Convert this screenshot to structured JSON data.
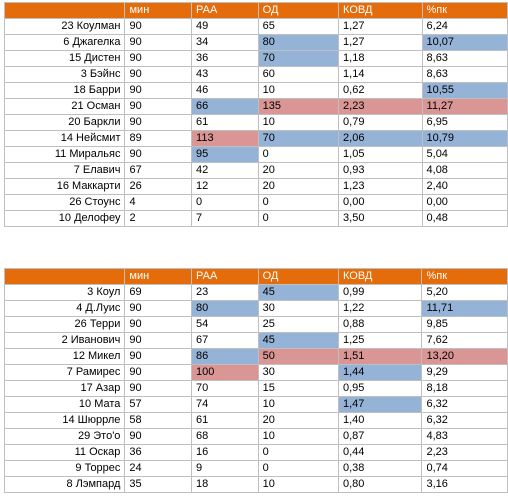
{
  "headers": [
    "",
    "мин",
    "РАА",
    "ОД",
    "КОВД",
    "%пк"
  ],
  "table_top": {
    "rows": [
      {
        "cells": [
          "23 Коулман",
          "90",
          "49",
          "65",
          "1,27",
          "6,24"
        ],
        "hl": [
          "",
          "",
          "",
          "",
          "",
          ""
        ]
      },
      {
        "cells": [
          "6 Джагелка",
          "90",
          "34",
          "80",
          "1,27",
          "10,07"
        ],
        "hl": [
          "",
          "",
          "",
          "blue",
          "",
          "blue"
        ]
      },
      {
        "cells": [
          "15 Дистен",
          "90",
          "36",
          "70",
          "1,18",
          "8,63"
        ],
        "hl": [
          "",
          "",
          "",
          "blue",
          "",
          ""
        ]
      },
      {
        "cells": [
          "3 Бэйнс",
          "90",
          "43",
          "60",
          "1,14",
          "8,63"
        ],
        "hl": [
          "",
          "",
          "",
          "",
          "",
          ""
        ]
      },
      {
        "cells": [
          "18 Барри",
          "90",
          "46",
          "10",
          "0,62",
          "10,55"
        ],
        "hl": [
          "",
          "",
          "",
          "",
          "",
          "blue"
        ]
      },
      {
        "cells": [
          "21 Осман",
          "90",
          "66",
          "135",
          "2,23",
          "11,27"
        ],
        "hl": [
          "",
          "",
          "blue",
          "red",
          "red",
          "red"
        ]
      },
      {
        "cells": [
          "20 Баркли",
          "90",
          "61",
          "10",
          "0,79",
          "6,95"
        ],
        "hl": [
          "",
          "",
          "",
          "",
          "",
          ""
        ]
      },
      {
        "cells": [
          "14 Нейсмит",
          "89",
          "113",
          "70",
          "2,06",
          "10,79"
        ],
        "hl": [
          "",
          "",
          "red",
          "blue",
          "blue",
          "blue"
        ]
      },
      {
        "cells": [
          "11 Миральяс",
          "90",
          "95",
          "0",
          "1,05",
          "5,04"
        ],
        "hl": [
          "",
          "",
          "blue",
          "",
          "",
          ""
        ]
      },
      {
        "cells": [
          "7 Елавич",
          "67",
          "42",
          "20",
          "0,93",
          "4,08"
        ],
        "hl": [
          "",
          "",
          "",
          "",
          "",
          ""
        ]
      },
      {
        "cells": [
          "16 Маккарти",
          "26",
          "12",
          "20",
          "1,23",
          "2,40"
        ],
        "hl": [
          "",
          "",
          "",
          "",
          "",
          ""
        ]
      },
      {
        "cells": [
          "26 Стоунс",
          "4",
          "0",
          "0",
          "0,00",
          "0,00"
        ],
        "hl": [
          "",
          "",
          "",
          "",
          "",
          ""
        ]
      },
      {
        "cells": [
          "10 Делофеу",
          "2",
          "7",
          "0",
          "3,50",
          "0,48"
        ],
        "hl": [
          "",
          "",
          "",
          "",
          "",
          ""
        ]
      }
    ]
  },
  "table_bottom": {
    "rows": [
      {
        "cells": [
          "3 Коул",
          "69",
          "23",
          "45",
          "0,99",
          "5,20"
        ],
        "hl": [
          "",
          "",
          "",
          "blue",
          "",
          ""
        ]
      },
      {
        "cells": [
          "4 Д.Луис",
          "90",
          "80",
          "30",
          "1,22",
          "11,71"
        ],
        "hl": [
          "",
          "",
          "blue",
          "",
          "",
          "blue"
        ]
      },
      {
        "cells": [
          "26 Терри",
          "90",
          "54",
          "25",
          "0,88",
          "9,85"
        ],
        "hl": [
          "",
          "",
          "",
          "",
          "",
          ""
        ]
      },
      {
        "cells": [
          "2 Иванович",
          "90",
          "67",
          "45",
          "1,25",
          "7,62"
        ],
        "hl": [
          "",
          "",
          "",
          "blue",
          "",
          ""
        ]
      },
      {
        "cells": [
          "12 Микел",
          "90",
          "86",
          "50",
          "1,51",
          "13,20"
        ],
        "hl": [
          "",
          "",
          "blue",
          "red",
          "red",
          "red"
        ]
      },
      {
        "cells": [
          "7 Рамирес",
          "90",
          "100",
          "30",
          "1,44",
          "9,29"
        ],
        "hl": [
          "",
          "",
          "red",
          "",
          "blue",
          ""
        ]
      },
      {
        "cells": [
          "17 Азар",
          "90",
          "70",
          "15",
          "0,95",
          "8,18"
        ],
        "hl": [
          "",
          "",
          "",
          "",
          "",
          ""
        ]
      },
      {
        "cells": [
          "10 Мата",
          "57",
          "74",
          "10",
          "1,47",
          "6,32"
        ],
        "hl": [
          "",
          "",
          "",
          "",
          "blue",
          ""
        ]
      },
      {
        "cells": [
          "14 Шюррле",
          "58",
          "61",
          "20",
          "1,40",
          "6,32"
        ],
        "hl": [
          "",
          "",
          "",
          "",
          "",
          ""
        ]
      },
      {
        "cells": [
          "29 Это'о",
          "90",
          "68",
          "10",
          "0,87",
          "4,83"
        ],
        "hl": [
          "",
          "",
          "",
          "",
          "",
          ""
        ]
      },
      {
        "cells": [
          "11 Оскар",
          "36",
          "16",
          "0",
          "0,44",
          "2,23"
        ],
        "hl": [
          "",
          "",
          "",
          "",
          "",
          ""
        ]
      },
      {
        "cells": [
          "9 Торрес",
          "24",
          "9",
          "0",
          "0,38",
          "0,74"
        ],
        "hl": [
          "",
          "",
          "",
          "",
          "",
          ""
        ]
      },
      {
        "cells": [
          "8 Лэмпард",
          "35",
          "18",
          "10",
          "0,80",
          "3,16"
        ],
        "hl": [
          "",
          "",
          "",
          "",
          "",
          ""
        ]
      }
    ]
  },
  "colors": {
    "header_bg": "#e46c0a",
    "highlight_blue": "#95b3d7",
    "highlight_red": "#da9694",
    "grid": "#bfbfbf"
  }
}
